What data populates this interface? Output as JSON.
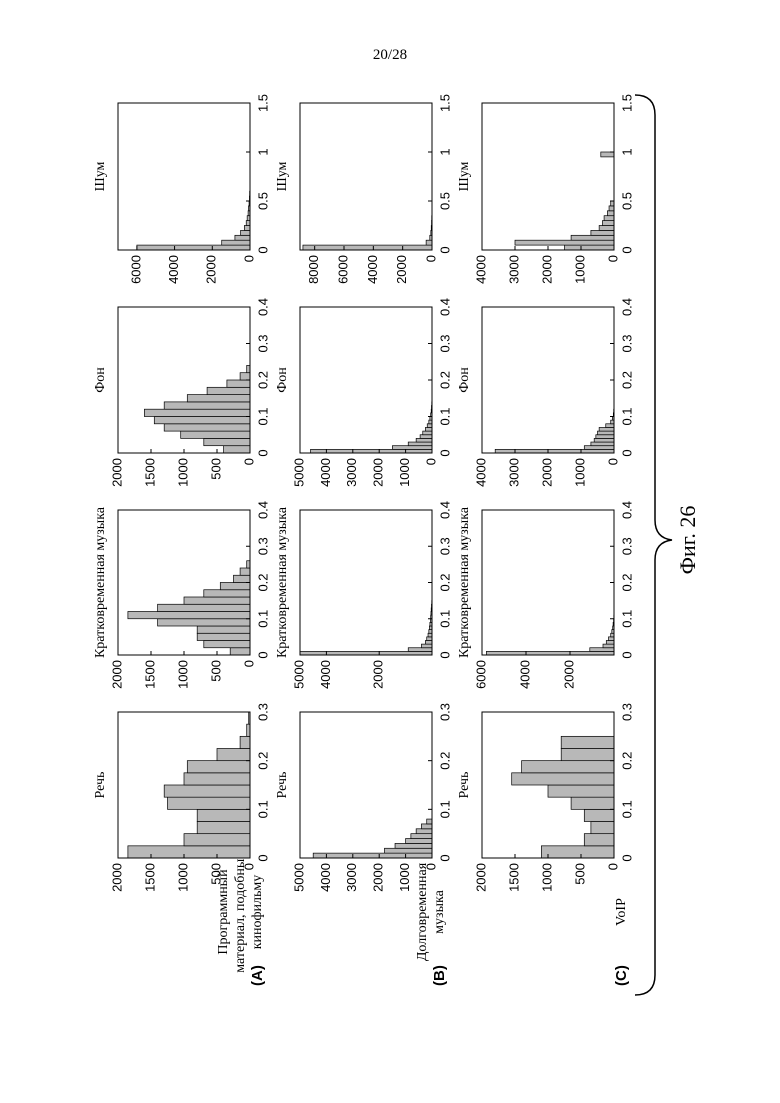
{
  "page_number": "20/28",
  "figure_label": "Фиг. 26",
  "row_labels": [
    {
      "letter": "(A)",
      "lines": [
        "Программный",
        "материал, подобный",
        "кинофильму"
      ]
    },
    {
      "letter": "(B)",
      "lines": [
        "Долговременная",
        "музыка"
      ]
    },
    {
      "letter": "(C)",
      "lines": [
        "VoIP"
      ]
    }
  ],
  "chart_data": [
    {
      "type": "histogram",
      "title": "Речь",
      "color": "#b8b8b8",
      "bins": [
        0,
        0.025,
        0.05,
        0.075,
        0.1,
        0.125,
        0.15,
        0.175,
        0.2,
        0.225,
        0.25,
        0.275,
        0.3
      ],
      "values": [
        1850,
        1000,
        800,
        800,
        1250,
        1300,
        1000,
        950,
        500,
        150,
        50,
        20
      ],
      "xlim": [
        0,
        0.3
      ],
      "xticks": [
        0,
        0.1,
        0.2,
        0.3
      ],
      "ylim": [
        0,
        2000
      ],
      "yticks": [
        0,
        500,
        1000,
        1500,
        2000
      ]
    },
    {
      "type": "histogram",
      "title": "Кратковременная музыка",
      "color": "#b8b8b8",
      "bins": [
        0,
        0.02,
        0.04,
        0.06,
        0.08,
        0.1,
        0.12,
        0.14,
        0.16,
        0.18,
        0.2,
        0.22,
        0.24,
        0.26
      ],
      "values": [
        300,
        700,
        800,
        800,
        1400,
        1850,
        1400,
        1000,
        700,
        450,
        250,
        150,
        50
      ],
      "xlim": [
        0,
        0.4
      ],
      "xticks": [
        0,
        0.1,
        0.2,
        0.3,
        0.4
      ],
      "ylim": [
        0,
        2000
      ],
      "yticks": [
        0,
        500,
        1000,
        1500,
        2000
      ]
    },
    {
      "type": "histogram",
      "title": "Фон",
      "color": "#b8b8b8",
      "bins": [
        0,
        0.02,
        0.04,
        0.06,
        0.08,
        0.1,
        0.12,
        0.14,
        0.16,
        0.18,
        0.2,
        0.22,
        0.24
      ],
      "values": [
        400,
        700,
        1050,
        1300,
        1450,
        1600,
        1300,
        950,
        650,
        350,
        150,
        50
      ],
      "xlim": [
        0,
        0.4
      ],
      "xticks": [
        0,
        0.1,
        0.2,
        0.3,
        0.4
      ],
      "ylim": [
        0,
        2000
      ],
      "yticks": [
        0,
        500,
        1000,
        1500,
        2000
      ]
    },
    {
      "type": "histogram",
      "title": "Шум",
      "color": "#b8b8b8",
      "bins": [
        0,
        0.05,
        0.1,
        0.15,
        0.2,
        0.25,
        0.3,
        0.35,
        0.4,
        0.45,
        0.5,
        0.55,
        0.6
      ],
      "values": [
        6000,
        1500,
        800,
        500,
        300,
        200,
        150,
        100,
        80,
        50,
        30,
        20
      ],
      "xlim": [
        0,
        1.5
      ],
      "xticks": [
        0,
        0.5,
        1,
        1.5
      ],
      "ylim": [
        0,
        7000
      ],
      "yticks": [
        0,
        2000,
        4000,
        6000
      ]
    },
    {
      "type": "histogram",
      "title": "Речь",
      "color": "#b8b8b8",
      "bins": [
        0,
        0.01,
        0.02,
        0.03,
        0.04,
        0.05,
        0.06,
        0.07,
        0.08
      ],
      "values": [
        4500,
        1800,
        1400,
        1000,
        800,
        600,
        400,
        200
      ],
      "xlim": [
        0,
        0.3
      ],
      "xticks": [
        0,
        0.1,
        0.2,
        0.3
      ],
      "ylim": [
        0,
        5000
      ],
      "yticks": [
        0,
        1000,
        2000,
        3000,
        4000,
        5000
      ]
    },
    {
      "type": "histogram",
      "title": "Кратковременная музыка",
      "color": "#b8b8b8",
      "bins": [
        0,
        0.01,
        0.02,
        0.03,
        0.04,
        0.05,
        0.06,
        0.07,
        0.08,
        0.09,
        0.1,
        0.11,
        0.12,
        0.13,
        0.14,
        0.15
      ],
      "values": [
        5000,
        900,
        400,
        250,
        200,
        150,
        120,
        100,
        80,
        60,
        50,
        40,
        30,
        20,
        10
      ],
      "xlim": [
        0,
        0.4
      ],
      "xticks": [
        0,
        0.1,
        0.2,
        0.3,
        0.4
      ],
      "ylim": [
        0,
        5000
      ],
      "yticks": [
        2000,
        4000,
        5000
      ]
    },
    {
      "type": "histogram",
      "title": "Фон",
      "color": "#b8b8b8",
      "bins": [
        0,
        0.01,
        0.02,
        0.03,
        0.04,
        0.05,
        0.06,
        0.07,
        0.08,
        0.09,
        0.1,
        0.11,
        0.12,
        0.13,
        0.14,
        0.15
      ],
      "values": [
        4600,
        1500,
        900,
        600,
        450,
        350,
        250,
        180,
        120,
        80,
        50,
        30,
        20,
        10,
        5
      ],
      "xlim": [
        0,
        0.4
      ],
      "xticks": [
        0,
        0.1,
        0.2,
        0.3,
        0.4
      ],
      "ylim": [
        0,
        5000
      ],
      "yticks": [
        0,
        1000,
        2000,
        3000,
        4000,
        5000
      ]
    },
    {
      "type": "histogram",
      "title": "Шум",
      "color": "#b8b8b8",
      "bins": [
        0,
        0.05,
        0.1,
        0.15,
        0.2,
        0.25,
        0.3,
        0.35,
        0.4,
        0.45
      ],
      "values": [
        8800,
        400,
        150,
        80,
        50,
        30,
        20,
        10,
        5
      ],
      "xlim": [
        0,
        1.5
      ],
      "xticks": [
        0,
        0.5,
        1,
        1.5
      ],
      "ylim": [
        0,
        9000
      ],
      "yticks": [
        0,
        2000,
        4000,
        6000,
        8000
      ]
    },
    {
      "type": "histogram",
      "title": "Речь",
      "color": "#b8b8b8",
      "bins": [
        0,
        0.025,
        0.05,
        0.075,
        0.1,
        0.125,
        0.15,
        0.175,
        0.2,
        0.225,
        0.25
      ],
      "values": [
        1100,
        450,
        350,
        450,
        650,
        1000,
        1550,
        1400,
        800,
        800
      ],
      "xlim": [
        0,
        0.3
      ],
      "xticks": [
        0,
        0.1,
        0.2,
        0.3
      ],
      "ylim": [
        0,
        2000
      ],
      "yticks": [
        0,
        500,
        1000,
        1500,
        2000
      ]
    },
    {
      "type": "histogram",
      "title": "Кратковременная музыка",
      "color": "#b8b8b8",
      "bins": [
        0,
        0.01,
        0.02,
        0.03,
        0.04,
        0.05,
        0.06,
        0.07,
        0.08,
        0.09,
        0.1,
        0.11,
        0.12
      ],
      "values": [
        5800,
        1100,
        500,
        350,
        250,
        150,
        100,
        60,
        40,
        20,
        10,
        5
      ],
      "xlim": [
        0,
        0.4
      ],
      "xticks": [
        0,
        0.1,
        0.2,
        0.3,
        0.4
      ],
      "ylim": [
        0,
        6000
      ],
      "yticks": [
        2000,
        4000,
        6000
      ]
    },
    {
      "type": "histogram",
      "title": "Фон",
      "color": "#b8b8b8",
      "bins": [
        0,
        0.01,
        0.02,
        0.03,
        0.04,
        0.05,
        0.06,
        0.07,
        0.08,
        0.09,
        0.1,
        0.11,
        0.12
      ],
      "values": [
        3600,
        900,
        700,
        600,
        550,
        500,
        450,
        250,
        100,
        50,
        20,
        10
      ],
      "xlim": [
        0,
        0.4
      ],
      "xticks": [
        0,
        0.1,
        0.2,
        0.3,
        0.4
      ],
      "ylim": [
        0,
        4000
      ],
      "yticks": [
        0,
        1000,
        2000,
        3000,
        4000
      ]
    },
    {
      "type": "histogram",
      "title": "Шум",
      "color": "#b8b8b8",
      "bins": [
        0,
        0.05,
        0.1,
        0.15,
        0.2,
        0.25,
        0.3,
        0.35,
        0.4,
        0.45,
        0.5,
        0.55,
        0.6,
        0.65,
        0.7,
        0.75,
        0.8,
        0.85,
        0.9,
        0.95,
        1
      ],
      "values": [
        1500,
        3000,
        1300,
        700,
        450,
        350,
        300,
        200,
        150,
        100,
        0,
        0,
        0,
        0,
        0,
        0,
        0,
        0,
        0,
        400
      ],
      "xlim": [
        0,
        1.5
      ],
      "xticks": [
        0,
        0.5,
        1,
        1.5
      ],
      "ylim": [
        0,
        4000
      ],
      "yticks": [
        0,
        1000,
        2000,
        3000,
        4000
      ]
    }
  ]
}
